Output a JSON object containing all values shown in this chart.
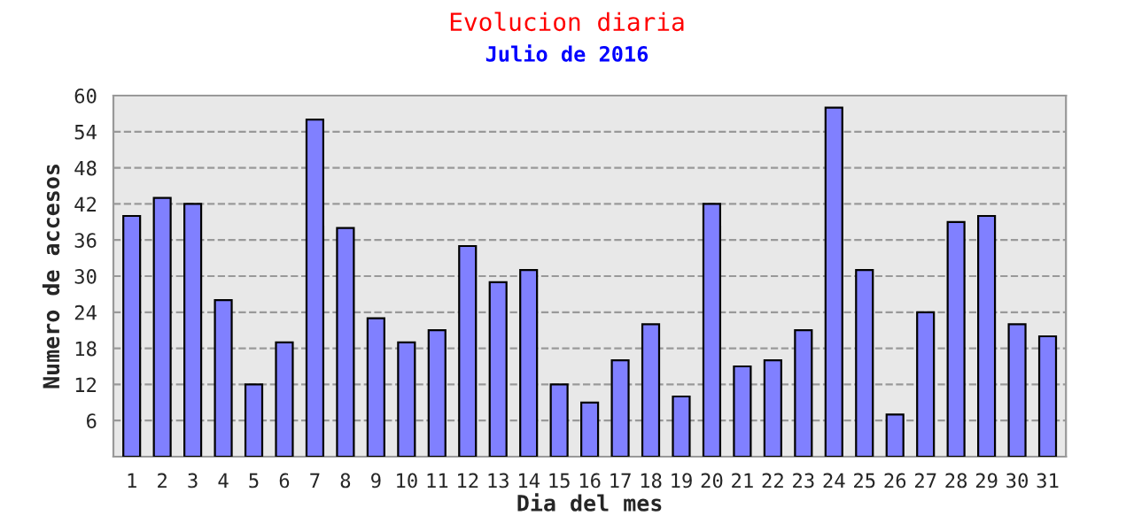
{
  "chart_data": {
    "type": "bar",
    "title": "Evolucion diaria",
    "subtitle": "Julio de 2016",
    "xlabel": "Dia del mes",
    "ylabel": "Numero de accesos",
    "categories": [
      "1",
      "2",
      "3",
      "4",
      "5",
      "6",
      "7",
      "8",
      "9",
      "10",
      "11",
      "12",
      "13",
      "14",
      "15",
      "16",
      "17",
      "18",
      "19",
      "20",
      "21",
      "22",
      "23",
      "24",
      "25",
      "26",
      "27",
      "28",
      "29",
      "30",
      "31"
    ],
    "values": [
      40,
      43,
      42,
      26,
      12,
      19,
      56,
      38,
      23,
      19,
      21,
      35,
      29,
      31,
      12,
      9,
      16,
      22,
      10,
      42,
      15,
      16,
      21,
      58,
      31,
      7,
      24,
      39,
      40,
      22,
      20
    ],
    "color": "#8080ff",
    "ylim": [
      0,
      60
    ],
    "yticks": [
      6,
      12,
      18,
      24,
      30,
      36,
      42,
      48,
      54,
      60
    ],
    "grid": "y"
  }
}
